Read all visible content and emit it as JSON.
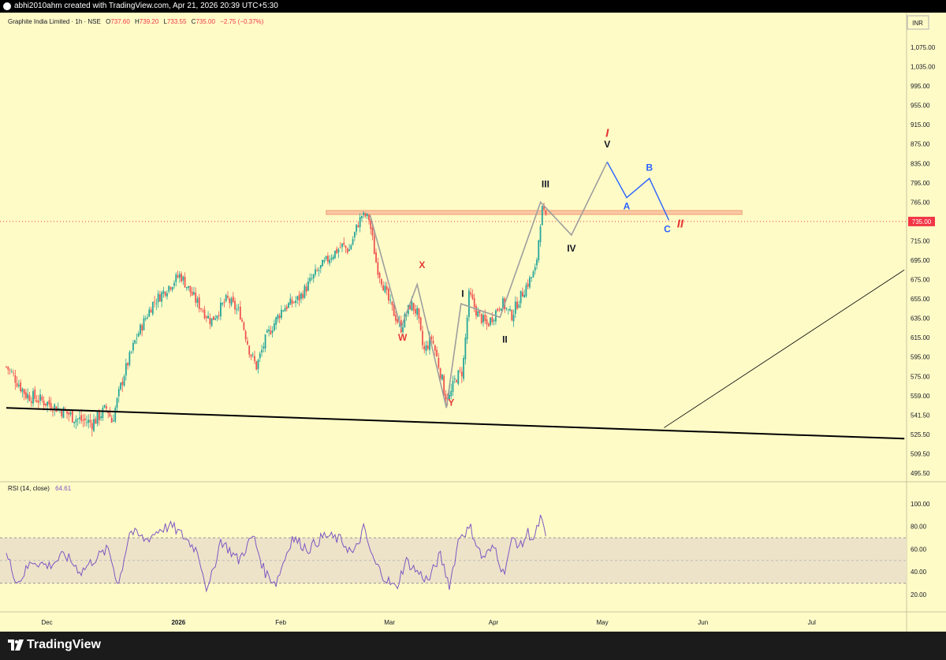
{
  "header": {
    "creator_line": "abhi2010ahm created with TradingView.com, Apr 21, 2026 20:39 UTC+5:30"
  },
  "legend": {
    "symbol": "Graphite India Limited · 1h · NSE",
    "o_label": "O",
    "o": "737.60",
    "h_label": "H",
    "h": "739.20",
    "l_label": "L",
    "l": "733.55",
    "c_label": "C",
    "c": "735.00",
    "change": "−2.75 (−0.37%)"
  },
  "currency": "INR",
  "last_price_label": "735.00",
  "rsi_label": "RSI (14, close)",
  "rsi_value": "64.61",
  "footer": {
    "brand": "TradingView"
  },
  "colors": {
    "background": "#fffbc7",
    "bull": "#26a69a",
    "bear": "#ef5350",
    "rsi_line": "#7e57c2",
    "rsi_band": "#ede3c9",
    "resistance_zone": "#f9c9a6",
    "wave_grey": "#9e9e9e",
    "wave_blue": "#2962ff",
    "wave_red": "#e53935",
    "wave_black": "#131722",
    "last_price_bg": "#f23645"
  },
  "chart_data": [
    {
      "type": "candlestick",
      "title": "Graphite India Limited · 1h · NSE",
      "y_axis_ticks": [
        "1,075.00",
        "1,035.00",
        "995.00",
        "955.00",
        "915.00",
        "875.00",
        "835.00",
        "795.00",
        "765.00",
        "735.00",
        "715.00",
        "695.00",
        "675.00",
        "655.00",
        "635.00",
        "615.00",
        "595.00",
        "575.00",
        "559.00",
        "541.50",
        "525.50",
        "509.50",
        "495.50"
      ],
      "x_axis_ticks": [
        "Dec",
        "2026",
        "Feb",
        "Mar",
        "Apr",
        "May",
        "Jun",
        "Jul"
      ],
      "price_anchors": [
        {
          "t": 0.0,
          "p": 585
        },
        {
          "t": 1.2,
          "p": 560
        },
        {
          "t": 2.6,
          "p": 552
        },
        {
          "t": 4.4,
          "p": 538
        },
        {
          "t": 5.3,
          "p": 535
        },
        {
          "t": 6.2,
          "p": 548
        },
        {
          "t": 6.5,
          "p": 536
        },
        {
          "t": 7.2,
          "p": 575
        },
        {
          "t": 8.0,
          "p": 615
        },
        {
          "t": 9.0,
          "p": 650
        },
        {
          "t": 10.0,
          "p": 668
        },
        {
          "t": 10.7,
          "p": 680
        },
        {
          "t": 11.6,
          "p": 655
        },
        {
          "t": 12.6,
          "p": 632
        },
        {
          "t": 13.6,
          "p": 655
        },
        {
          "t": 14.4,
          "p": 640
        },
        {
          "t": 15.0,
          "p": 600
        },
        {
          "t": 15.4,
          "p": 585
        },
        {
          "t": 16.0,
          "p": 615
        },
        {
          "t": 17.0,
          "p": 645
        },
        {
          "t": 18.0,
          "p": 655
        },
        {
          "t": 19.0,
          "p": 680
        },
        {
          "t": 20.0,
          "p": 700
        },
        {
          "t": 20.7,
          "p": 710
        },
        {
          "t": 21.1,
          "p": 705
        },
        {
          "t": 21.9,
          "p": 745
        },
        {
          "t": 22.3,
          "p": 742
        },
        {
          "t": 22.8,
          "p": 690
        },
        {
          "t": 23.6,
          "p": 650
        },
        {
          "t": 24.3,
          "p": 625
        },
        {
          "t": 24.9,
          "p": 650
        },
        {
          "t": 25.3,
          "p": 640
        },
        {
          "t": 25.7,
          "p": 600
        },
        {
          "t": 26.2,
          "p": 615
        },
        {
          "t": 26.5,
          "p": 595
        },
        {
          "t": 27.0,
          "p": 560
        },
        {
          "t": 27.3,
          "p": 557
        },
        {
          "t": 27.7,
          "p": 575
        },
        {
          "t": 28.1,
          "p": 580
        },
        {
          "t": 28.5,
          "p": 660
        },
        {
          "t": 29.0,
          "p": 640
        },
        {
          "t": 29.6,
          "p": 628
        },
        {
          "t": 30.0,
          "p": 638
        },
        {
          "t": 30.5,
          "p": 652
        },
        {
          "t": 31.1,
          "p": 637
        },
        {
          "t": 31.5,
          "p": 652
        },
        {
          "t": 32.0,
          "p": 668
        },
        {
          "t": 32.6,
          "p": 685
        },
        {
          "t": 33.0,
          "p": 755
        },
        {
          "t": 33.3,
          "p": 735
        }
      ],
      "wave_paths": {
        "grey_wxy": [
          {
            "t": 22.4,
            "p": 745
          },
          {
            "t": 24.3,
            "p": 625
          },
          {
            "t": 25.3,
            "p": 670
          },
          {
            "t": 27.1,
            "p": 548
          },
          {
            "t": 28.0,
            "p": 650
          },
          {
            "t": 30.4,
            "p": 636
          },
          {
            "t": 32.9,
            "p": 765
          },
          {
            "t": 34.8,
            "p": 721
          },
          {
            "t": 37.0,
            "p": 838
          }
        ],
        "blue_abc": [
          {
            "t": 37.0,
            "p": 838
          },
          {
            "t": 38.2,
            "p": 772
          },
          {
            "t": 39.6,
            "p": 804
          },
          {
            "t": 40.8,
            "p": 737
          }
        ]
      },
      "resistance_zone": {
        "t_start": 19.7,
        "t_end": 45.3,
        "p_low": 746,
        "p_high": 752
      },
      "trendlines": [
        {
          "t1": 0.0,
          "p1": 548,
          "t2": 55.3,
          "p2": 522,
          "style": "thick"
        },
        {
          "t1": 40.5,
          "p1": 531,
          "t2": 55.3,
          "p2": 685,
          "style": "thin"
        }
      ],
      "wave_labels": [
        {
          "text": "X",
          "t": 25.6,
          "p": 687,
          "color": "red"
        },
        {
          "text": "W",
          "t": 24.4,
          "p": 612,
          "color": "red"
        },
        {
          "text": "Y",
          "t": 27.4,
          "p": 550,
          "color": "red"
        },
        {
          "text": "I",
          "t": 28.1,
          "p": 657,
          "color": "black"
        },
        {
          "text": "II",
          "t": 30.7,
          "p": 610,
          "color": "black"
        },
        {
          "text": "III",
          "t": 33.2,
          "p": 788,
          "color": "black"
        },
        {
          "text": "IV",
          "t": 34.8,
          "p": 704,
          "color": "black"
        },
        {
          "text": "V",
          "t": 37.0,
          "p": 868,
          "color": "black"
        },
        {
          "text": "I",
          "t": 37.0,
          "p": 890,
          "color": "red",
          "italic": true
        },
        {
          "text": "A",
          "t": 38.2,
          "p": 754,
          "color": "blue"
        },
        {
          "text": "B",
          "t": 39.6,
          "p": 820,
          "color": "blue"
        },
        {
          "text": "C",
          "t": 40.7,
          "p": 724,
          "color": "blue"
        },
        {
          "text": "II",
          "t": 41.5,
          "p": 729,
          "color": "red",
          "italic": true
        }
      ]
    },
    {
      "type": "line",
      "title": "RSI (14, close)",
      "y_axis_ticks": [
        "100.00",
        "80.00",
        "60.00",
        "40.00",
        "20.00"
      ],
      "ylim": [
        20,
        100
      ],
      "band": [
        30,
        70
      ],
      "midline": 50,
      "rsi_anchors": [
        {
          "t": 0.0,
          "p": 55
        },
        {
          "t": 0.7,
          "p": 30
        },
        {
          "t": 1.6,
          "p": 50
        },
        {
          "t": 2.6,
          "p": 45
        },
        {
          "t": 3.6,
          "p": 55
        },
        {
          "t": 4.6,
          "p": 40
        },
        {
          "t": 5.5,
          "p": 52
        },
        {
          "t": 6.3,
          "p": 60
        },
        {
          "t": 6.9,
          "p": 28
        },
        {
          "t": 7.6,
          "p": 76
        },
        {
          "t": 8.6,
          "p": 68
        },
        {
          "t": 9.5,
          "p": 78
        },
        {
          "t": 10.2,
          "p": 80
        },
        {
          "t": 11.0,
          "p": 70
        },
        {
          "t": 11.8,
          "p": 58
        },
        {
          "t": 12.4,
          "p": 22
        },
        {
          "t": 13.2,
          "p": 68
        },
        {
          "t": 14.3,
          "p": 50
        },
        {
          "t": 15.2,
          "p": 72
        },
        {
          "t": 15.9,
          "p": 40
        },
        {
          "t": 16.6,
          "p": 30
        },
        {
          "t": 17.6,
          "p": 70
        },
        {
          "t": 18.6,
          "p": 60
        },
        {
          "t": 19.6,
          "p": 72
        },
        {
          "t": 20.6,
          "p": 68
        },
        {
          "t": 21.4,
          "p": 55
        },
        {
          "t": 22.0,
          "p": 78
        },
        {
          "t": 22.6,
          "p": 50
        },
        {
          "t": 23.3,
          "p": 35
        },
        {
          "t": 24.0,
          "p": 25
        },
        {
          "t": 24.6,
          "p": 50
        },
        {
          "t": 25.3,
          "p": 40
        },
        {
          "t": 26.0,
          "p": 32
        },
        {
          "t": 26.7,
          "p": 55
        },
        {
          "t": 27.3,
          "p": 28
        },
        {
          "t": 27.9,
          "p": 72
        },
        {
          "t": 28.6,
          "p": 78
        },
        {
          "t": 29.3,
          "p": 52
        },
        {
          "t": 30.1,
          "p": 62
        },
        {
          "t": 30.6,
          "p": 38
        },
        {
          "t": 31.2,
          "p": 70
        },
        {
          "t": 31.7,
          "p": 62
        },
        {
          "t": 32.1,
          "p": 75
        },
        {
          "t": 32.5,
          "p": 68
        },
        {
          "t": 32.9,
          "p": 88
        },
        {
          "t": 33.3,
          "p": 64.61
        }
      ]
    }
  ]
}
